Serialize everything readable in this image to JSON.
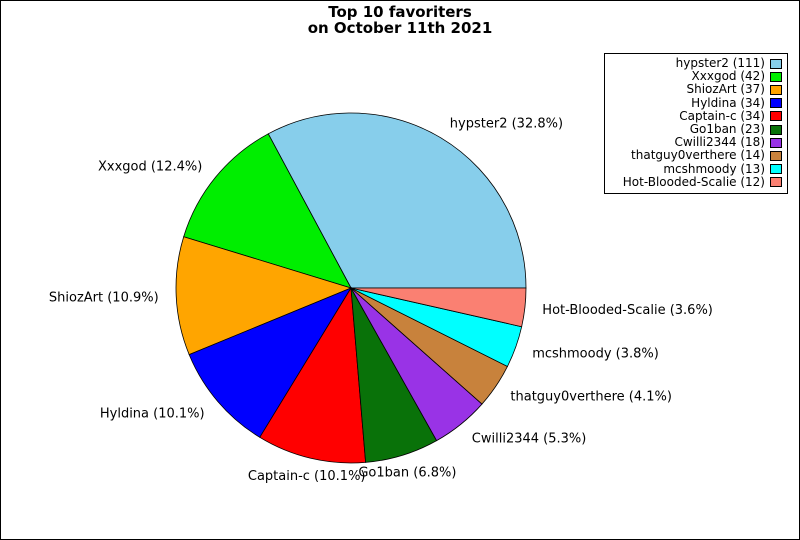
{
  "title": {
    "line1": "Top 10 favoriters",
    "line2": "on October 11th 2021"
  },
  "chart_data": {
    "type": "pie",
    "title": "Top 10 favoriters on October 11th 2021",
    "start_angle_deg": 0,
    "direction": "counterclockwise",
    "label_distance": 1.1,
    "legend_position": "upper right",
    "total": 338,
    "slices": [
      {
        "name": "hypster2",
        "value": 111,
        "pct": 32.8,
        "slice_label": "hypster2 (32.8%)",
        "legend_label": "hypster2 (111)",
        "color": "#87CEEB"
      },
      {
        "name": "Xxxgod",
        "value": 42,
        "pct": 12.4,
        "slice_label": "Xxxgod (12.4%)",
        "legend_label": "Xxxgod (42)",
        "color": "#00EE00"
      },
      {
        "name": "ShiozArt",
        "value": 37,
        "pct": 10.9,
        "slice_label": "ShiozArt (10.9%)",
        "legend_label": "ShiozArt (37)",
        "color": "#FFA500"
      },
      {
        "name": "Hyldina",
        "value": 34,
        "pct": 10.1,
        "slice_label": "Hyldina (10.1%)",
        "legend_label": "Hyldina (34)",
        "color": "#0000FF"
      },
      {
        "name": "Captain-c",
        "value": 34,
        "pct": 10.1,
        "slice_label": "Captain-c (10.1%)",
        "legend_label": "Captain-c (34)",
        "color": "#FF0000"
      },
      {
        "name": "Go1ban",
        "value": 23,
        "pct": 6.8,
        "slice_label": "Go1ban (6.8%)",
        "legend_label": "Go1ban (23)",
        "color": "#097209"
      },
      {
        "name": "Cwilli2344",
        "value": 18,
        "pct": 5.3,
        "slice_label": "Cwilli2344 (5.3%)",
        "legend_label": "Cwilli2344 (18)",
        "color": "#9933E6"
      },
      {
        "name": "thatguy0verthere",
        "value": 14,
        "pct": 4.1,
        "slice_label": "thatguy0verthere (4.1%)",
        "legend_label": "thatguy0verthere (14)",
        "color": "#C8823C"
      },
      {
        "name": "mcshmoody",
        "value": 13,
        "pct": 3.8,
        "slice_label": "mcshmoody (3.8%)",
        "legend_label": "mcshmoody (13)",
        "color": "#00FFFF"
      },
      {
        "name": "Hot-Blooded-Scalie",
        "value": 12,
        "pct": 3.6,
        "slice_label": "Hot-Blooded-Scalie (3.6%)",
        "legend_label": "Hot-Blooded-Scalie (12)",
        "color": "#FA8072"
      }
    ]
  }
}
